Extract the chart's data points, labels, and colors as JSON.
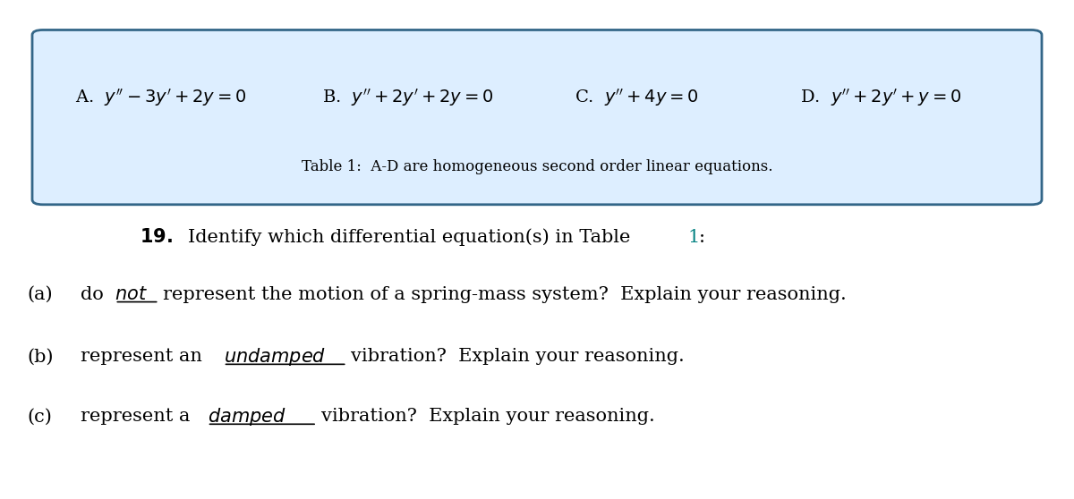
{
  "bg_color": "#ffffff",
  "box_bg_color": "#ddeeff",
  "box_border_color": "#336688",
  "eq_A": "A.  $y'' - 3y' + 2y = 0$",
  "eq_B": "B.  $y'' + 2y' + 2y = 0$",
  "eq_C": "C.  $y'' + 4y = 0$",
  "eq_D": "D.  $y'' + 2y' + y = 0$",
  "table_caption": "Table 1:  A-D are homogeneous second order linear equations.",
  "q19_line1": "\\textbf{19.}  Identify which differential equation(s) in Table ",
  "table_ref": "1",
  "q19_suffix": ":",
  "qa": "(a)  do \\underline{\\textit{not}} represent the motion of a spring-mass system?  Explain your reasoning.",
  "qb": "(b)  represent an \\underline{\\textit{undamped}} vibration?  Explain your reasoning.",
  "qc": "(c)  represent a \\underline{\\textit{damped}} vibration?  Explain your reasoning.",
  "eq_fontsize": 14,
  "caption_fontsize": 12,
  "body_fontsize": 15,
  "fig_width": 12.0,
  "fig_height": 5.58
}
